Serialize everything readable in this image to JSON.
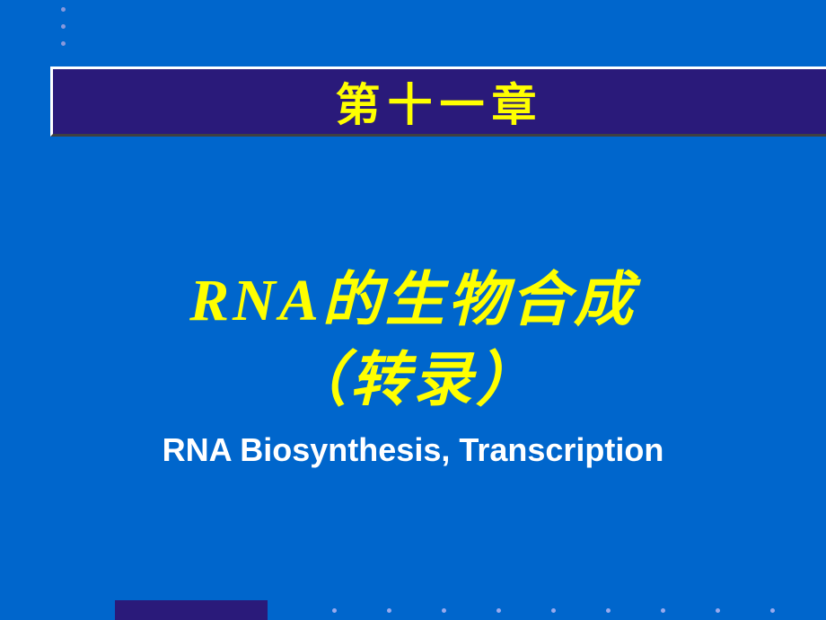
{
  "chapter": {
    "label": "第十一章"
  },
  "title": {
    "cn_line1": "RNA的生物合成",
    "cn_line2": "（转录）",
    "en": "RNA Biosynthesis, Transcription"
  },
  "colors": {
    "background": "#0066cc",
    "accent_bar": "#2a1a7a",
    "title_text": "#ffff00",
    "subtitle_text": "#ffffff",
    "bullet": "#8899dd"
  }
}
